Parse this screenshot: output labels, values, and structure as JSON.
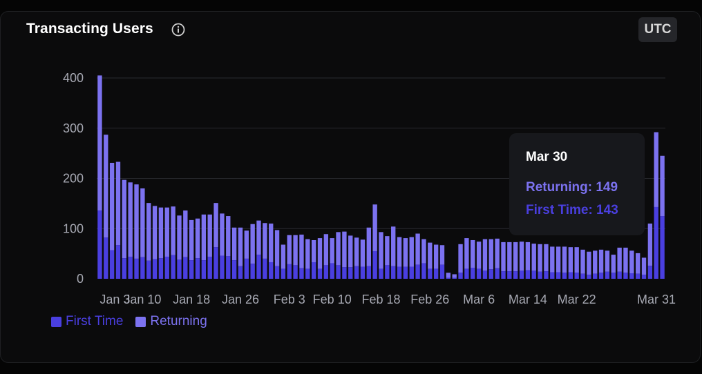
{
  "header": {
    "title": "Transacting Users",
    "timezone_label": "UTC"
  },
  "legend": {
    "items": [
      {
        "label": "First Time",
        "color": "#4a3fe0"
      },
      {
        "label": "Returning",
        "color": "#7c72f0"
      }
    ]
  },
  "tooltip": {
    "date": "Mar 30",
    "returning_label": "Returning: 149",
    "first_time_label": "First Time: 143",
    "returning_color": "#7c72f0",
    "first_time_color": "#4a3fe0"
  },
  "chart_data": {
    "type": "bar",
    "stacked": true,
    "ylim": [
      0,
      400
    ],
    "yticks": [
      0,
      100,
      200,
      300,
      400
    ],
    "xtick_labels": [
      "Jan 3",
      "Jan 10",
      "Jan 18",
      "Jan 26",
      "Feb 3",
      "Feb 10",
      "Feb 18",
      "Feb 26",
      "Mar 6",
      "Mar 14",
      "Mar 22",
      "Mar 31"
    ],
    "grid": true,
    "legend_position": "bottom-left",
    "series": [
      {
        "name": "First Time",
        "color": "#4a3fe0",
        "values": [
          136,
          82,
          57,
          67,
          41,
          44,
          40,
          43,
          36,
          39,
          41,
          44,
          47,
          38,
          43,
          37,
          41,
          37,
          44,
          63,
          46,
          45,
          37,
          25,
          40,
          30,
          48,
          40,
          33,
          25,
          20,
          29,
          27,
          21,
          20,
          33,
          20,
          27,
          31,
          27,
          23,
          23,
          25,
          24,
          25,
          55,
          20,
          27,
          25,
          24,
          24,
          24,
          28,
          31,
          20,
          20,
          28,
          2,
          2,
          12,
          20,
          22,
          20,
          16,
          19,
          21,
          15,
          15,
          15,
          16,
          17,
          16,
          14,
          15,
          13,
          13,
          12,
          13,
          12,
          10,
          8,
          10,
          12,
          14,
          12,
          14,
          12,
          11,
          10,
          8,
          26,
          143,
          125
        ]
      },
      {
        "name": "Returning",
        "color": "#7c72f0",
        "values": [
          269,
          205,
          174,
          166,
          156,
          148,
          148,
          137,
          115,
          106,
          101,
          98,
          97,
          88,
          93,
          80,
          79,
          91,
          84,
          88,
          84,
          80,
          65,
          77,
          56,
          79,
          68,
          71,
          77,
          72,
          48,
          58,
          60,
          67,
          59,
          44,
          61,
          62,
          50,
          66,
          71,
          63,
          57,
          54,
          77,
          93,
          73,
          58,
          79,
          59,
          57,
          59,
          62,
          48,
          52,
          48,
          39,
          10,
          7,
          57,
          61,
          55,
          54,
          63,
          60,
          59,
          58,
          58,
          58,
          58,
          56,
          54,
          55,
          54,
          51,
          51,
          52,
          50,
          51,
          48,
          46,
          46,
          46,
          42,
          36,
          48,
          50,
          45,
          41,
          34,
          84,
          149,
          120
        ]
      }
    ]
  }
}
